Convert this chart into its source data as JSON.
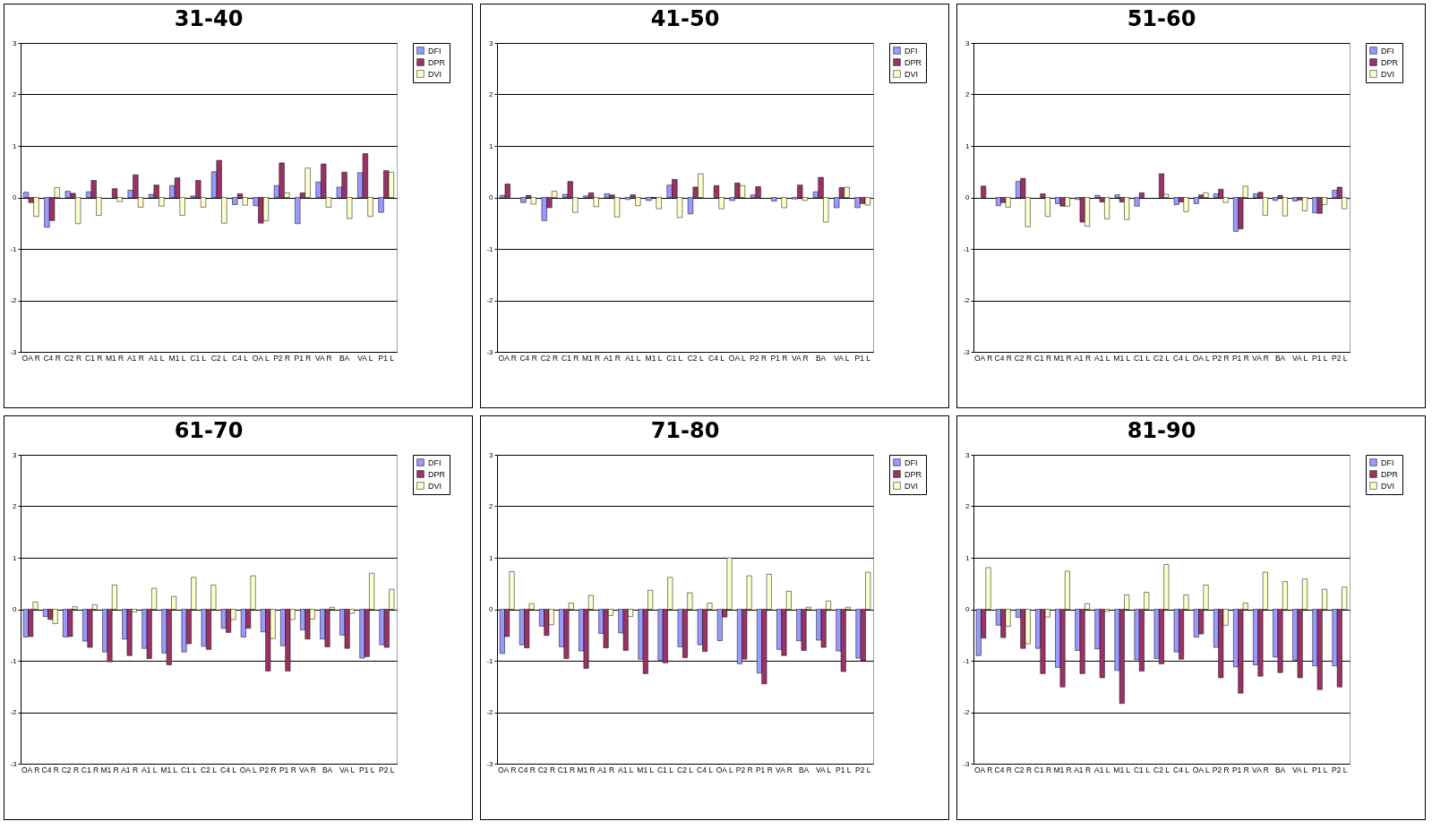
{
  "chart_data": [
    {
      "type": "bar",
      "title": "31-40",
      "categories": [
        "OA R",
        "C4 R",
        "C2 R",
        "C1 R",
        "M1 R",
        "A1 R",
        "A1 L",
        "M1 L",
        "C1 L",
        "C2 L",
        "C4 L",
        "OA L",
        "P2 R",
        "P1 R",
        "VA R",
        "BA",
        "VA L",
        "P1 L"
      ],
      "series": [
        {
          "name": "DFI",
          "color": "#9999ff",
          "values": [
            0.1,
            -0.58,
            0.12,
            0.11,
            null,
            0.14,
            0.06,
            0.23,
            0.03,
            0.5,
            -0.14,
            -0.16,
            0.23,
            -0.51,
            0.3,
            0.2,
            0.48,
            -0.29
          ]
        },
        {
          "name": "DPR",
          "color": "#993366",
          "values": [
            -0.1,
            -0.45,
            0.08,
            0.33,
            0.17,
            0.44,
            0.24,
            0.38,
            0.33,
            0.72,
            0.07,
            -0.5,
            0.67,
            0.09,
            0.65,
            0.49,
            0.85,
            0.52
          ]
        },
        {
          "name": "DVI",
          "color": "#ffffcc",
          "values": [
            -0.37,
            0.19,
            -0.51,
            -0.35,
            -0.08,
            -0.19,
            -0.17,
            -0.35,
            -0.19,
            -0.5,
            -0.15,
            -0.45,
            0.09,
            0.57,
            -0.19,
            -0.41,
            -0.37,
            0.49
          ]
        }
      ],
      "ylim": [
        -3,
        3
      ],
      "yticks": [
        -3,
        -2,
        -1,
        0,
        1,
        2,
        3
      ],
      "grid": "y",
      "legend": "right"
    },
    {
      "type": "bar",
      "title": "41-50",
      "categories": [
        "OA R",
        "C4 R",
        "C2 R",
        "C1 R",
        "M1 R",
        "A1 R",
        "A1 L",
        "M1 L",
        "C1 L",
        "C2 L",
        "C4 L",
        "OA L",
        "P2 R",
        "P1 R",
        "VA R",
        "BA",
        "VA L",
        "P1 L"
      ],
      "series": [
        {
          "name": "DFI",
          "color": "#9999ff",
          "values": [
            0.04,
            -0.1,
            -0.45,
            0.06,
            0.03,
            0.07,
            -0.04,
            -0.06,
            0.24,
            -0.32,
            null,
            -0.06,
            0.05,
            -0.07,
            -0.03,
            0.11,
            -0.2,
            -0.2
          ]
        },
        {
          "name": "DPR",
          "color": "#993366",
          "values": [
            0.26,
            0.04,
            -0.2,
            0.31,
            0.09,
            0.05,
            0.05,
            -0.01,
            0.35,
            0.2,
            0.23,
            0.28,
            0.21,
            null,
            0.24,
            0.39,
            0.19,
            -0.12
          ]
        },
        {
          "name": "DVI",
          "color": "#ffffcc",
          "values": [
            null,
            -0.13,
            0.12,
            -0.29,
            -0.18,
            -0.38,
            -0.16,
            -0.22,
            -0.39,
            0.46,
            -0.22,
            0.23,
            null,
            -0.2,
            -0.06,
            -0.48,
            0.2,
            -0.15
          ]
        }
      ],
      "ylim": [
        -3,
        3
      ],
      "yticks": [
        -3,
        -2,
        -1,
        0,
        1,
        2,
        3
      ],
      "grid": "y",
      "legend": "right"
    },
    {
      "type": "bar",
      "title": "51-60",
      "categories": [
        "OA R",
        "C4 R",
        "C2 R",
        "C1 R",
        "M1 R",
        "A1 R",
        "A1 L",
        "M1 L",
        "C1 L",
        "C2 L",
        "C4 L",
        "OA L",
        "P2 R",
        "P1 R",
        "VA R",
        "BA",
        "VA L",
        "P1 L",
        "P2 L"
      ],
      "series": [
        {
          "name": "DFI",
          "color": "#9999ff",
          "values": [
            null,
            -0.16,
            0.31,
            null,
            -0.12,
            -0.04,
            0.04,
            0.05,
            -0.17,
            null,
            -0.14,
            -0.12,
            0.07,
            -0.66,
            0.07,
            -0.06,
            -0.07,
            -0.3,
            0.14
          ]
        },
        {
          "name": "DPR",
          "color": "#993366",
          "values": [
            0.22,
            -0.1,
            0.37,
            0.07,
            -0.17,
            -0.48,
            -0.09,
            -0.09,
            0.09,
            0.46,
            -0.09,
            0.05,
            0.16,
            -0.61,
            0.1,
            0.04,
            -0.05,
            -0.31,
            0.2
          ]
        },
        {
          "name": "DVI",
          "color": "#ffffcc",
          "values": [
            null,
            -0.19,
            -0.57,
            -0.37,
            -0.17,
            -0.56,
            -0.42,
            -0.43,
            null,
            0.06,
            -0.28,
            0.09,
            -0.1,
            0.22,
            -0.35,
            -0.36,
            -0.26,
            -0.14,
            -0.22
          ]
        }
      ],
      "ylim": [
        -3,
        3
      ],
      "yticks": [
        -3,
        -2,
        -1,
        0,
        1,
        2,
        3
      ],
      "grid": "y",
      "legend": "right"
    },
    {
      "type": "bar",
      "title": "61-70",
      "categories": [
        "OA R",
        "C4 R",
        "C2 R",
        "C1 R",
        "M1 R",
        "A1 R",
        "A1 L",
        "M1 L",
        "C1 L",
        "C2 L",
        "C4 L",
        "OA L",
        "P2 R",
        "P1 R",
        "VA R",
        "BA",
        "VA L",
        "P1 L",
        "P2 L"
      ],
      "series": [
        {
          "name": "DFI",
          "color": "#9999ff",
          "values": [
            -0.54,
            -0.14,
            -0.54,
            -0.62,
            -0.83,
            -0.58,
            -0.76,
            -0.85,
            -0.83,
            -0.72,
            -0.37,
            -0.54,
            -0.44,
            -0.71,
            -0.4,
            -0.58,
            -0.5,
            -0.95,
            -0.69
          ]
        },
        {
          "name": "DPR",
          "color": "#993366",
          "values": [
            -0.53,
            -0.2,
            -0.53,
            -0.74,
            -1.02,
            -0.9,
            -0.96,
            -1.08,
            -0.67,
            -0.78,
            -0.45,
            -0.37,
            -1.2,
            -1.2,
            -0.58,
            -0.73,
            -0.76,
            -0.92,
            -0.74
          ]
        },
        {
          "name": "DVI",
          "color": "#ffffcc",
          "values": [
            0.14,
            -0.28,
            0.05,
            0.09,
            0.47,
            -0.05,
            0.41,
            0.25,
            0.62,
            0.47,
            -0.2,
            0.65,
            -0.57,
            -0.2,
            -0.19,
            0.04,
            -0.08,
            0.7,
            0.39
          ]
        }
      ],
      "ylim": [
        -3,
        3
      ],
      "yticks": [
        -3,
        -2,
        -1,
        0,
        1,
        2,
        3
      ],
      "grid": "y",
      "legend": "right"
    },
    {
      "type": "bar",
      "title": "71-80",
      "categories": [
        "OA R",
        "C4 R",
        "C2 R",
        "C1 R",
        "M1 R",
        "A1 R",
        "A1 L",
        "M1 L",
        "C1 L",
        "C2 L",
        "C4 L",
        "OA L",
        "P2 R",
        "P1 R",
        "VA R",
        "BA",
        "VA L",
        "P1 L",
        "P2 L"
      ],
      "series": [
        {
          "name": "DFI",
          "color": "#9999ff",
          "values": [
            -0.86,
            -0.69,
            -0.33,
            -0.73,
            -0.81,
            -0.47,
            -0.46,
            -0.97,
            -0.99,
            -0.73,
            -0.69,
            -0.61,
            -1.06,
            -1.24,
            -0.78,
            -0.61,
            -0.6,
            -0.81,
            -0.95
          ]
        },
        {
          "name": "DPR",
          "color": "#993366",
          "values": [
            -0.53,
            -0.75,
            -0.51,
            -0.96,
            -1.15,
            -0.75,
            -0.8,
            -1.25,
            -1.04,
            -0.94,
            -0.82,
            -0.15,
            -0.97,
            -1.45,
            -0.9,
            -0.8,
            -0.74,
            -1.21,
            -1.0
          ]
        },
        {
          "name": "DVI",
          "color": "#ffffcc",
          "values": [
            0.73,
            0.11,
            -0.3,
            0.12,
            0.27,
            -0.12,
            -0.14,
            0.37,
            0.62,
            0.32,
            0.12,
            1.0,
            0.65,
            0.68,
            0.35,
            0.04,
            0.16,
            0.04,
            0.72
          ]
        }
      ],
      "ylim": [
        -3,
        3
      ],
      "yticks": [
        -3,
        -2,
        -1,
        0,
        1,
        2,
        3
      ],
      "grid": "y",
      "legend": "right"
    },
    {
      "type": "bar",
      "title": "81-90",
      "categories": [
        "OA R",
        "C4 R",
        "C2 R",
        "C1 R",
        "M1 R",
        "A1 R",
        "A1 L",
        "M1 L",
        "C1 L",
        "C2 L",
        "C4 L",
        "OA L",
        "P2 R",
        "P1 R",
        "VA R",
        "BA",
        "VA L",
        "P1 L",
        "P2 L"
      ],
      "series": [
        {
          "name": "DFI",
          "color": "#9999ff",
          "values": [
            -0.9,
            -0.31,
            -0.16,
            -0.76,
            -1.13,
            -0.8,
            -0.77,
            -1.19,
            -0.98,
            -0.96,
            -0.83,
            -0.54,
            -0.74,
            -1.12,
            -1.08,
            -0.93,
            -0.99,
            -1.1,
            -1.1
          ]
        },
        {
          "name": "DPR",
          "color": "#993366",
          "values": [
            -0.56,
            -0.55,
            -0.76,
            -1.25,
            -1.51,
            -1.25,
            -1.33,
            -1.83,
            -1.2,
            -1.06,
            -0.97,
            -0.48,
            -1.33,
            -1.63,
            -1.3,
            -1.23,
            -1.33,
            -1.56,
            -1.51
          ]
        },
        {
          "name": "DVI",
          "color": "#ffffcc",
          "values": [
            0.81,
            -0.33,
            -0.67,
            -0.15,
            0.74,
            0.11,
            -0.04,
            0.28,
            0.33,
            0.87,
            0.28,
            0.47,
            -0.31,
            0.12,
            0.72,
            0.54,
            0.59,
            0.39,
            0.43
          ]
        }
      ],
      "ylim": [
        -3,
        3
      ],
      "yticks": [
        -3,
        -2,
        -1,
        0,
        1,
        2,
        3
      ],
      "grid": "y",
      "legend": "right"
    }
  ]
}
